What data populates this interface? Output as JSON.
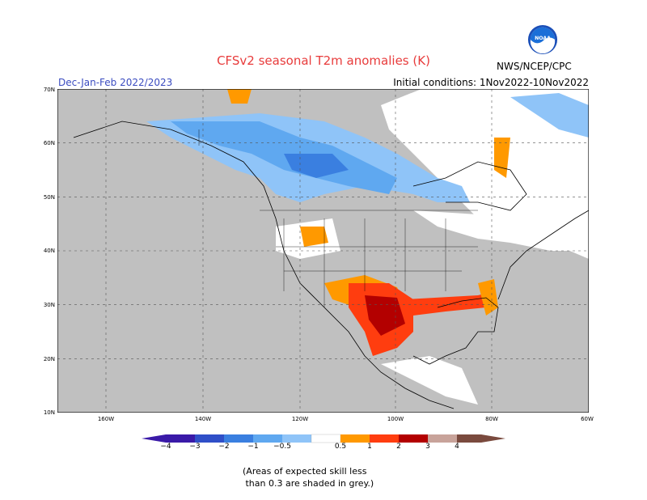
{
  "header": {
    "title": "CFSv2 seasonal T2m anomalies (K)",
    "period": "Dec-Jan-Feb 2022/2023",
    "initial_conditions": "Initial conditions: 1Nov2022-10Nov2022",
    "agency": "NWS/NCEP/CPC",
    "logo_text": "NOAA"
  },
  "axes": {
    "lat_labels": [
      "70N",
      "60N",
      "50N",
      "40N",
      "30N",
      "20N",
      "10N"
    ],
    "lon_labels": [
      "160W",
      "140W",
      "120W",
      "100W",
      "80W",
      "60W"
    ]
  },
  "colorbar": {
    "labels": [
      "−4",
      "−3",
      "−2",
      "−1",
      "−0.5",
      "0.5",
      "1",
      "2",
      "3",
      "4"
    ],
    "colors": [
      "#3a1aa8",
      "#2f4fc8",
      "#3a7fe0",
      "#5fa8f0",
      "#8fc4f8",
      "#ffffff",
      "#ff9900",
      "#ff3d0f",
      "#b30000",
      "#c8a39a",
      "#7a4a3e"
    ]
  },
  "map": {
    "region": "North America",
    "grey_color": "#c0c0c0",
    "neutral_color": "#ffffff"
  },
  "footnote": "(Areas of expected skill less\n than 0.3 are shaded in grey.)"
}
